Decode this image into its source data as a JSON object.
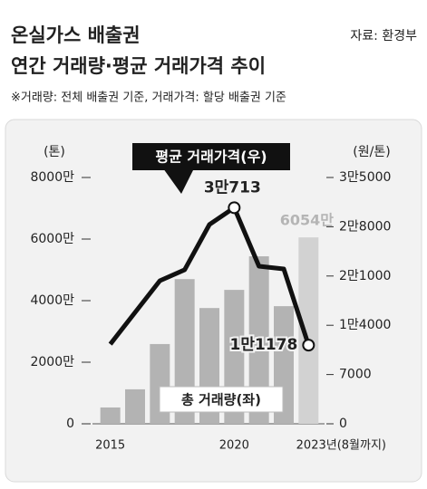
{
  "header": {
    "title_line1": "온실가스 배출권",
    "title_line2": "연간 거래량·평균 거래가격 추이",
    "source": "자료: 환경부",
    "note": "※거래량: 전체 배출권 기준, 거래가격: 할당 배출권 기준"
  },
  "chart_data": {
    "type": "combo",
    "y_label": "(톤)",
    "y2_label": "(원/톤)",
    "categories": [
      "2015",
      null,
      null,
      null,
      null,
      "2020",
      null,
      null,
      "2023년(8월까지)"
    ],
    "ylim": [
      0,
      80000000
    ],
    "yticks": [
      0,
      {
        "value": 20000000,
        "label": "2000만"
      },
      {
        "value": 40000000,
        "label": "4000만"
      },
      {
        "value": 60000000,
        "label": "6000만"
      },
      {
        "value": 80000000,
        "label": "8000만"
      }
    ],
    "y2lim": [
      0,
      35000
    ],
    "y2ticks": [
      0,
      7000,
      {
        "value": 14000,
        "label": "1만4000"
      },
      {
        "value": 21000,
        "label": "2만1000"
      },
      {
        "value": 28000,
        "label": "2만8000"
      },
      {
        "value": 35000,
        "label": "3만5000"
      }
    ],
    "series": [
      {
        "name": "총 거래량(좌)",
        "type": "bar",
        "axis": "y",
        "color": "#b3b3b3",
        "highlight_color": "#d2d2d2",
        "values": [
          5300000,
          11200000,
          25900000,
          47000000,
          37600000,
          43500000,
          54400000,
          38200000,
          60540000
        ],
        "value_labels": [
          null,
          null,
          null,
          null,
          null,
          null,
          null,
          null,
          "6054만"
        ]
      },
      {
        "name": "평균 거래가격(우)",
        "type": "line",
        "axis": "y2",
        "color": "#111111",
        "values": [
          11320,
          15830,
          20330,
          21880,
          28310,
          30713,
          22390,
          22000,
          11178
        ],
        "value_labels": [
          null,
          null,
          null,
          null,
          null,
          "3만713",
          null,
          null,
          "1만1178"
        ]
      }
    ]
  }
}
